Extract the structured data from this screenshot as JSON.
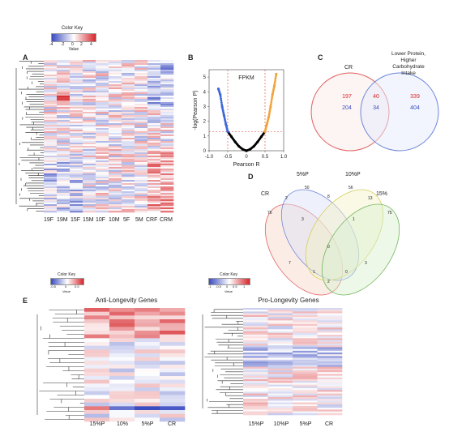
{
  "colors": {
    "low": "#3b4cc0",
    "mid": "#ffffff",
    "high": "#d6262b",
    "red_circle": "#e06060",
    "blue_circle": "#6e86d8",
    "scatter_blue": "#3f67d9",
    "scatter_orange": "#f2a43b",
    "scatter_red": "#e6553a",
    "dashed": "#e33b2f"
  },
  "panel_a": {
    "letter": "A",
    "color_key_title": "Color Key",
    "color_key_ticks": [
      "-4",
      "-2",
      "0",
      "2",
      "4"
    ],
    "color_key_label": "Value",
    "columns": [
      "19F",
      "19M",
      "15F",
      "15M",
      "10F",
      "10M",
      "5F",
      "5M",
      "CRF",
      "CRM"
    ]
  },
  "panel_b": {
    "letter": "B",
    "label": "FPKM",
    "xlabel": "Pearson R",
    "ylabel": "-log(Pearson P)",
    "x_ticks": [
      "-1.0",
      "-0.5",
      "0",
      "0.5",
      "1.0"
    ],
    "y_ticks": [
      "0",
      "1",
      "2",
      "3",
      "4",
      "5"
    ]
  },
  "chart_data": {
    "type": "scatter",
    "xlabel": "Pearson R",
    "ylabel": "-log(Pearson P)",
    "xlim": [
      -1.0,
      1.0
    ],
    "ylim": [
      0,
      5.5
    ],
    "thresholds": {
      "x": [
        -0.5,
        0.5
      ],
      "y": 1.3
    },
    "series": [
      {
        "color": "#000000",
        "x": [
          -0.5,
          -0.4,
          -0.3,
          -0.2,
          -0.1,
          0,
          0.1,
          0.2,
          0.3,
          0.4,
          0.5
        ],
        "y": [
          1.3,
          0.95,
          0.6,
          0.3,
          0.1,
          0,
          0.1,
          0.3,
          0.6,
          0.95,
          1.3
        ]
      },
      {
        "color": "#3f67d9",
        "x": [
          -0.5,
          -0.55,
          -0.6,
          -0.65,
          -0.7,
          -0.75
        ],
        "y": [
          1.3,
          1.8,
          2.4,
          3.0,
          3.8,
          4.2
        ]
      },
      {
        "color": "#f2a43b",
        "x": [
          0.5,
          0.55,
          0.6,
          0.65,
          0.7,
          0.75,
          0.8
        ],
        "y": [
          1.3,
          1.8,
          2.3,
          3.0,
          3.8,
          4.4,
          5.2
        ]
      }
    ]
  },
  "panel_c": {
    "letter": "C",
    "left_label": "CR",
    "right_label_lines": [
      "Lower Protein,",
      "Higher Carbohydrate",
      "Intake"
    ],
    "left_only": [
      "197",
      "204"
    ],
    "overlap": [
      "40",
      "34"
    ],
    "right_only": [
      "339",
      "404"
    ]
  },
  "panel_d": {
    "letter": "D",
    "labels": [
      "CR",
      "5%P",
      "10%P",
      "15%"
    ],
    "values": [
      "76",
      "2",
      "50",
      "8",
      "56",
      "13",
      "75",
      "3",
      "1",
      "0",
      "7",
      "1",
      "0",
      "3",
      "2"
    ]
  },
  "panel_e": {
    "letter": "E",
    "left": {
      "color_key_title": "Color Key",
      "ticks": [
        "-0.5",
        "0",
        "0.5"
      ],
      "key_label": "Value",
      "title": "Anti-Longevity Genes",
      "columns": [
        "15%P",
        "10%",
        "5%P",
        "CR"
      ]
    },
    "right": {
      "color_key_title": "Color Key",
      "ticks": [
        "-1",
        "-0.5",
        "0",
        "0.5",
        "1"
      ],
      "key_label": "Value",
      "title": "Pro-Longevity Genes",
      "columns": [
        "15%P",
        "10%P",
        "5%P",
        "CR"
      ]
    }
  }
}
